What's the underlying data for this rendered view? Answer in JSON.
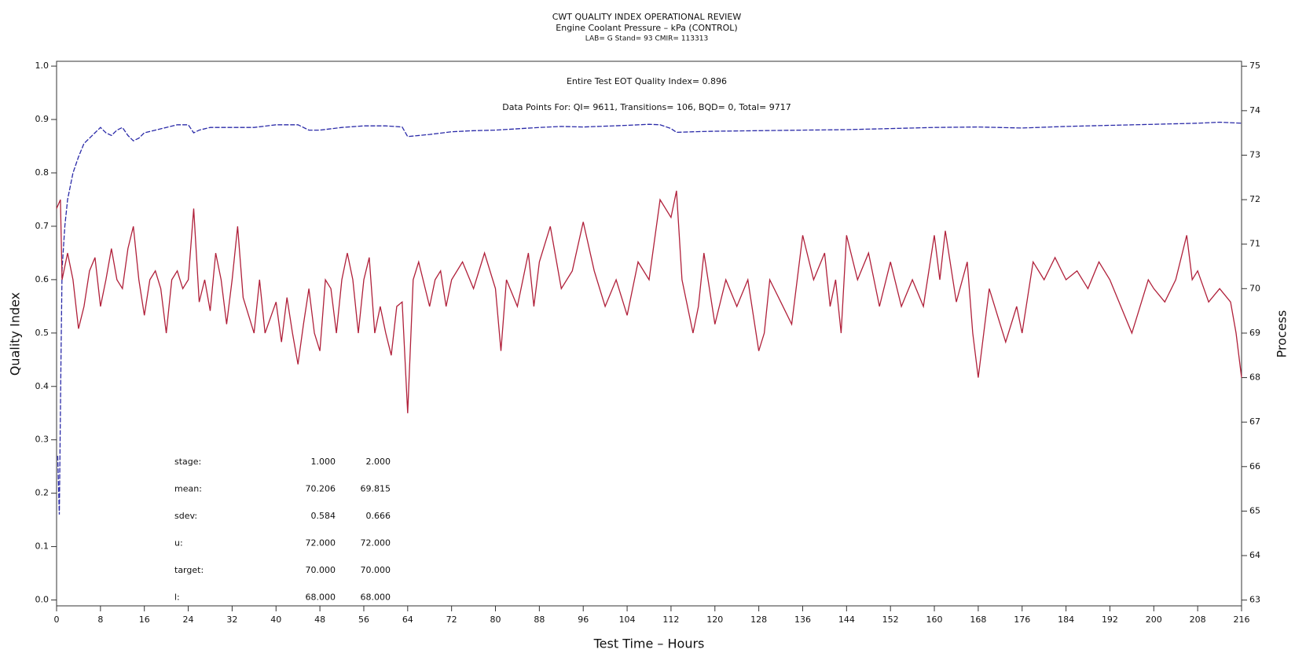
{
  "chart_data": {
    "type": "line",
    "title": "CWT QUALITY INDEX OPERATIONAL REVIEW",
    "subtitle": "Engine Coolant Pressure – kPa (CONTROL)",
    "subtitle2": "LAB= G Stand= 93 CMIR= 113313",
    "annotations": [
      "Entire Test EOT Quality Index=   0.896",
      "Data Points For: QI=  9611, Transitions=   106, BQD=    0, Total=  9717"
    ],
    "stats_table": [
      [
        "stage:",
        "1.000",
        "2.000"
      ],
      [
        "mean:",
        "70.206",
        "69.815"
      ],
      [
        "sdev:",
        "0.584",
        "0.666"
      ],
      [
        "u:",
        "72.000",
        "72.000"
      ],
      [
        "target:",
        "70.000",
        "70.000"
      ],
      [
        "l:",
        "68.000",
        "68.000"
      ]
    ],
    "xlabel": "Test Time – Hours",
    "ylabel": "Quality Index",
    "y2label": "Process",
    "xlim": [
      0,
      216
    ],
    "xticks": [
      0,
      8,
      16,
      24,
      32,
      40,
      48,
      56,
      64,
      72,
      80,
      88,
      96,
      104,
      112,
      120,
      128,
      136,
      144,
      152,
      160,
      168,
      176,
      184,
      192,
      200,
      208,
      216
    ],
    "ylim": [
      -0.011,
      1.009
    ],
    "yticks": [
      {
        "value": 0,
        "label": "0.0"
      },
      0.1,
      0.2,
      0.3,
      0.4,
      0.5,
      0.6,
      0.7,
      0.8,
      0.9,
      {
        "value": 1,
        "label": "1.0"
      }
    ],
    "y2lim": [
      62.87,
      75.11
    ],
    "y2ticks": [
      63,
      64,
      65,
      66,
      67,
      68,
      69,
      70,
      71,
      72,
      73,
      74,
      75
    ],
    "series": [
      {
        "color": "#2a2aa8",
        "dashed": true,
        "x": [
          0.2,
          0.5,
          0.8,
          1,
          1.5,
          2,
          3,
          4,
          5,
          6,
          7,
          8,
          9,
          10,
          11,
          12,
          13,
          14,
          15,
          16,
          18,
          20,
          22,
          24,
          25,
          26,
          28,
          32,
          36,
          40,
          44,
          46,
          48,
          52,
          56,
          60,
          63,
          64,
          68,
          72,
          76,
          80,
          88,
          92,
          96,
          104,
          108,
          110,
          112,
          113,
          116,
          120,
          128,
          136,
          144,
          152,
          160,
          168,
          176,
          184,
          192,
          200,
          208,
          212,
          216
        ],
        "values": [
          0.27,
          0.16,
          0.45,
          0.62,
          0.7,
          0.75,
          0.8,
          0.83,
          0.855,
          0.865,
          0.875,
          0.885,
          0.875,
          0.87,
          0.88,
          0.885,
          0.87,
          0.86,
          0.865,
          0.875,
          0.88,
          0.885,
          0.89,
          0.89,
          0.875,
          0.88,
          0.885,
          0.885,
          0.885,
          0.89,
          0.89,
          0.88,
          0.88,
          0.885,
          0.888,
          0.888,
          0.886,
          0.868,
          0.872,
          0.877,
          0.879,
          0.88,
          0.885,
          0.887,
          0.886,
          0.889,
          0.891,
          0.89,
          0.883,
          0.876,
          0.877,
          0.878,
          0.879,
          0.88,
          0.881,
          0.883,
          0.885,
          0.886,
          0.884,
          0.887,
          0.889,
          0.891,
          0.893,
          0.895,
          0.893
        ]
      },
      {
        "color": "#b0203a",
        "axis": "y2",
        "x": [
          0,
          0.7,
          1,
          2,
          3,
          4,
          5,
          6,
          7,
          8,
          9,
          10,
          11,
          12,
          13,
          14,
          15,
          16,
          17,
          18,
          19,
          20,
          21,
          22,
          23,
          24,
          25,
          26,
          27,
          28,
          29,
          30,
          31,
          32,
          33,
          34,
          36,
          37,
          38,
          40,
          41,
          42,
          43,
          44,
          45,
          46,
          47,
          48,
          49,
          50,
          51,
          52,
          53,
          54,
          55,
          56,
          57,
          58,
          59,
          60,
          61,
          62,
          63,
          64,
          65,
          66,
          68,
          69,
          70,
          71,
          72,
          74,
          76,
          78,
          80,
          81,
          82,
          84,
          85,
          86,
          87,
          88,
          90,
          92,
          94,
          96,
          98,
          100,
          102,
          104,
          106,
          108,
          110,
          112,
          113,
          114,
          116,
          117,
          118,
          120,
          122,
          124,
          126,
          128,
          129,
          130,
          132,
          134,
          136,
          138,
          140,
          141,
          142,
          143,
          144,
          146,
          148,
          150,
          152,
          154,
          156,
          158,
          160,
          161,
          162,
          164,
          166,
          167,
          168,
          170,
          172,
          173,
          175,
          176,
          178,
          180,
          182,
          184,
          186,
          188,
          190,
          192,
          194,
          196,
          197,
          199,
          200,
          202,
          204,
          206,
          207,
          208,
          210,
          212,
          214,
          215,
          216
        ],
        "values": [
          71.8,
          72.0,
          70.2,
          70.8,
          70.2,
          69.1,
          69.6,
          70.4,
          70.7,
          69.6,
          70.2,
          70.9,
          70.2,
          70.0,
          70.9,
          71.4,
          70.2,
          69.4,
          70.2,
          70.4,
          70.0,
          69.0,
          70.2,
          70.4,
          70.0,
          70.2,
          71.8,
          69.7,
          70.2,
          69.5,
          70.8,
          70.2,
          69.2,
          70.2,
          71.4,
          69.8,
          69.0,
          70.2,
          69.0,
          69.7,
          68.8,
          69.8,
          69.0,
          68.3,
          69.2,
          70.0,
          69.0,
          68.6,
          70.2,
          70.0,
          69.0,
          70.2,
          70.8,
          70.2,
          69.0,
          70.2,
          70.7,
          69.0,
          69.6,
          69.0,
          68.5,
          69.6,
          69.7,
          67.2,
          70.2,
          70.6,
          69.6,
          70.2,
          70.4,
          69.6,
          70.2,
          70.6,
          70.0,
          70.8,
          70.0,
          68.6,
          70.2,
          69.6,
          70.2,
          70.8,
          69.6,
          70.6,
          71.4,
          70.0,
          70.4,
          71.5,
          70.4,
          69.6,
          70.2,
          69.4,
          70.6,
          70.2,
          72.0,
          71.6,
          72.2,
          70.2,
          69.0,
          69.6,
          70.8,
          69.2,
          70.2,
          69.6,
          70.2,
          68.6,
          69.0,
          70.2,
          69.7,
          69.2,
          71.2,
          70.2,
          70.8,
          69.6,
          70.2,
          69.0,
          71.2,
          70.2,
          70.8,
          69.6,
          70.6,
          69.6,
          70.2,
          69.6,
          71.2,
          70.2,
          71.3,
          69.7,
          70.6,
          69.0,
          68.0,
          70.0,
          69.2,
          68.8,
          69.6,
          69.0,
          70.6,
          70.2,
          70.7,
          70.2,
          70.4,
          70.0,
          70.6,
          70.2,
          69.6,
          69.0,
          69.4,
          70.2,
          70.0,
          69.7,
          70.2,
          71.2,
          70.2,
          70.4,
          69.7,
          70.0,
          69.7,
          69.0,
          68.0
        ]
      }
    ]
  }
}
